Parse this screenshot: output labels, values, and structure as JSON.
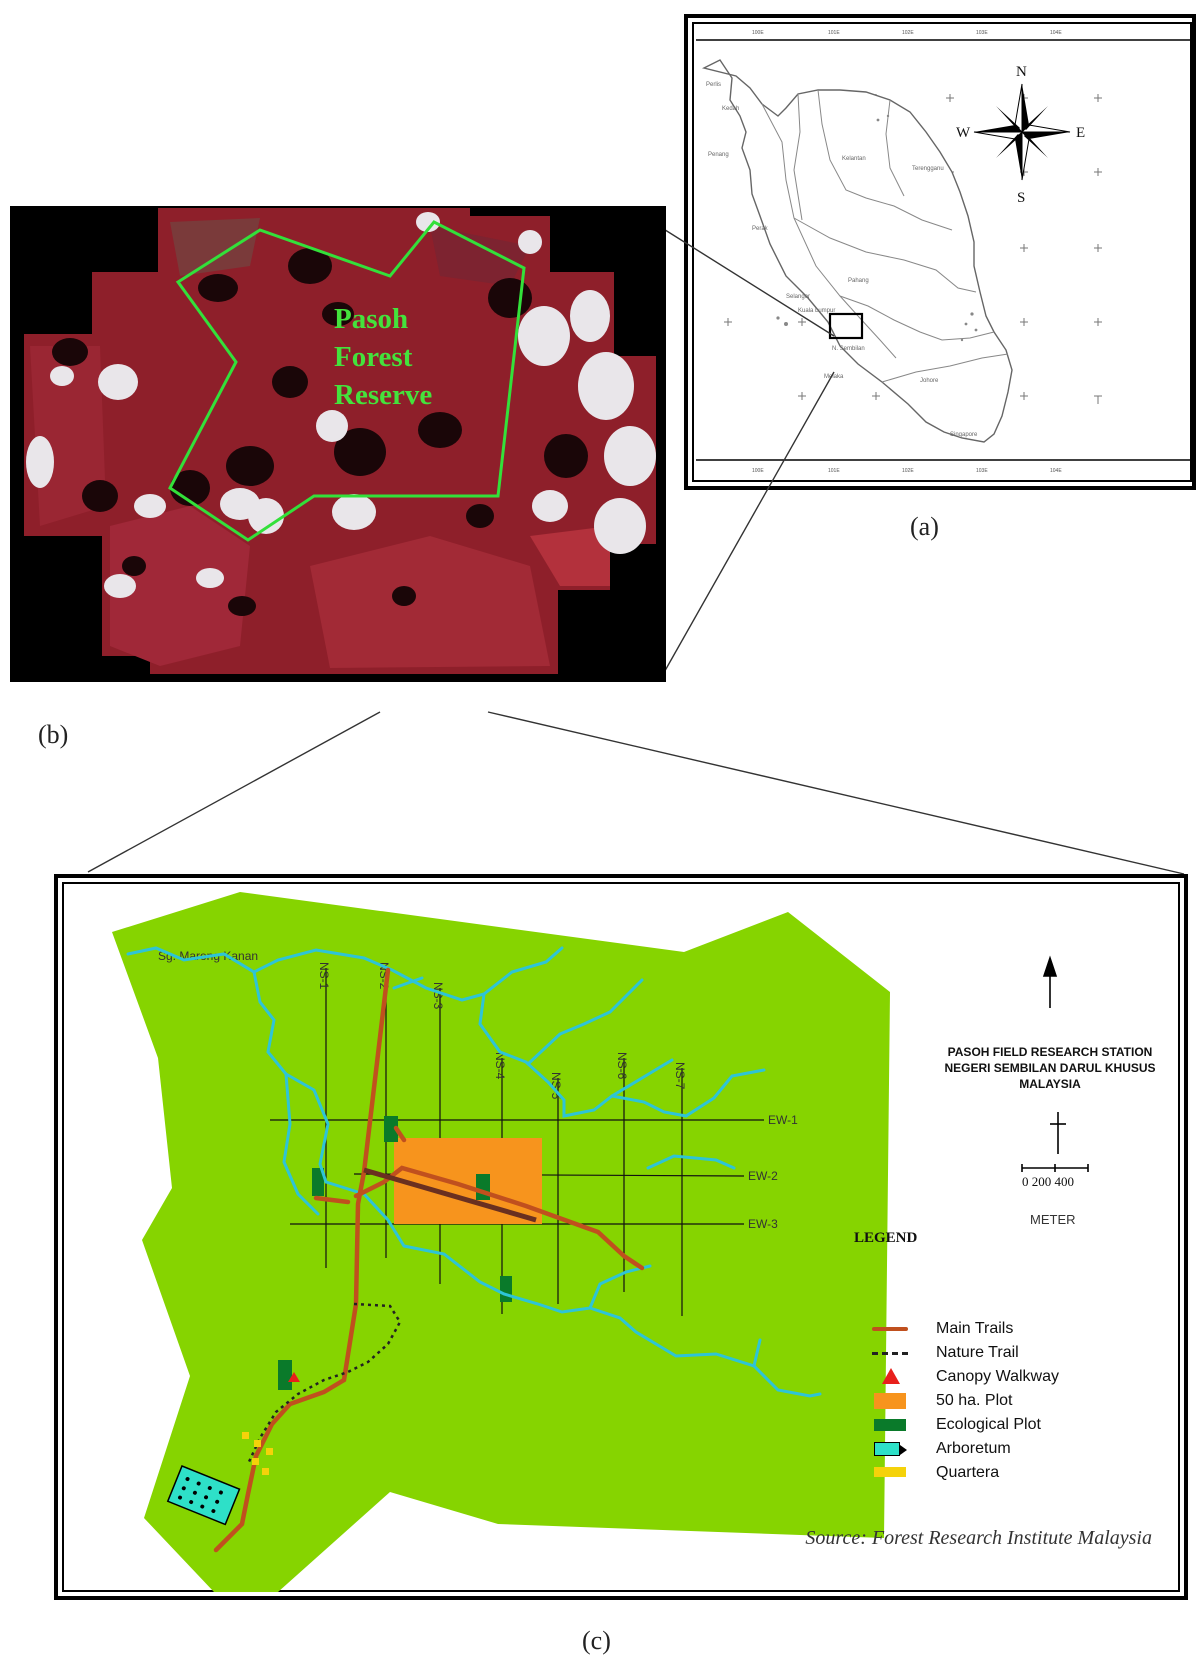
{
  "panels": {
    "a": {
      "label": "(a)"
    },
    "b": {
      "label": "(b)"
    },
    "c": {
      "label": "(c)"
    }
  },
  "map_a": {
    "compass": {
      "n": "N",
      "s": "S",
      "e": "E",
      "w": "W"
    },
    "states": [
      "Perlis",
      "Kedah",
      "Penang",
      "Perak",
      "Kelantan",
      "Terengganu",
      "Pahang",
      "Selangor",
      "Kuala Lumpur",
      "N. Sembilan",
      "Melaka",
      "Johore",
      "Singapore"
    ],
    "lon_ticks": [
      "100E",
      "101E",
      "102E",
      "103E",
      "104E"
    ]
  },
  "map_b": {
    "title_line1": "Pasoh",
    "title_line2": "Forest",
    "title_line3": "Reserve"
  },
  "map_c": {
    "river_label": "Sg. Marong Kanan",
    "ns_lines": [
      "NS-1",
      "NS-2",
      "NS-3",
      "NS-4",
      "NS-5",
      "NS-6",
      "NS-7"
    ],
    "ew_lines": [
      "EW-1",
      "EW-2",
      "EW-3"
    ],
    "station_title_1": "PASOH FIELD RESEARCH STATION",
    "station_title_2": "NEGERI SEMBILAN DARUL KHUSUS",
    "station_title_3": "MALAYSIA",
    "scale_labels": "0  200  400",
    "scale_unit": "METER",
    "legend_title": "LEGEND",
    "legend": [
      {
        "label": "Main Trails",
        "symbol": "main-trail"
      },
      {
        "label": "Nature Trail",
        "symbol": "nature-trail"
      },
      {
        "label": "Canopy Walkway",
        "symbol": "canopy-walkway"
      },
      {
        "label": "50 ha. Plot",
        "symbol": "plot-50ha"
      },
      {
        "label": "Ecological Plot",
        "symbol": "ecological-plot"
      },
      {
        "label": "Arboretum",
        "symbol": "arboretum"
      },
      {
        "label": "Quartera",
        "symbol": "quartera"
      }
    ],
    "source": "Source: Forest Research Institute Malaysia"
  },
  "colors": {
    "land": "#86d400",
    "river": "#2ec4d6",
    "trail": "#c0501e",
    "plot50": "#f7941d",
    "ecoplot": "#0a7a2a",
    "quartera": "#f5d20a",
    "boundary_b": "#33e03a",
    "reserve_text": "#44e23c",
    "canopy": "#e8201c",
    "arboretum": "#2ee0c8"
  }
}
